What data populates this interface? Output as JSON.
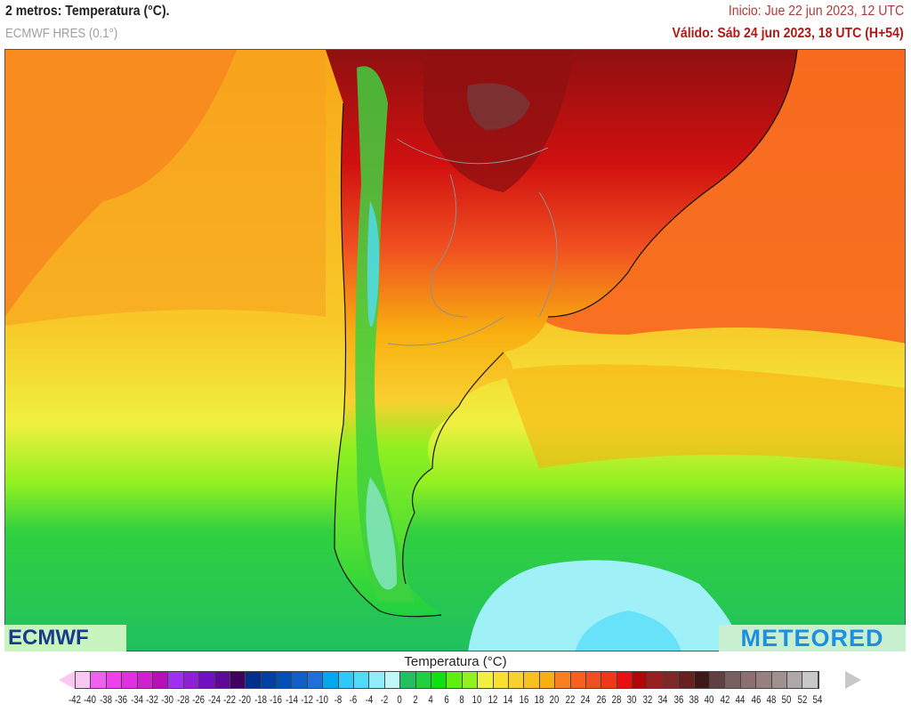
{
  "header": {
    "title": "2 metros: Temperatura (°C).",
    "model": "ECMWF HRES (0.1°)",
    "init": "Inicio: Jue 22 jun 2023, 12 UTC",
    "valid": "Válido: Sáb 24 jun 2023, 18 UTC (H+54)"
  },
  "map": {
    "region": "South America (southern cone)",
    "variable": "2 m temperature"
  },
  "logos": {
    "left": "ECMWF",
    "right": "METEORED"
  },
  "legend": {
    "title": "Temperatura (°C)",
    "ticks": [
      -42,
      -40,
      -38,
      -36,
      -34,
      -32,
      -30,
      -28,
      -26,
      -24,
      -22,
      -20,
      -18,
      -16,
      -14,
      -12,
      -10,
      -8,
      -6,
      -4,
      -2,
      0,
      2,
      4,
      6,
      8,
      10,
      12,
      14,
      16,
      18,
      20,
      22,
      24,
      26,
      28,
      30,
      32,
      34,
      36,
      38,
      40,
      42,
      44,
      46,
      48,
      50,
      52,
      54
    ],
    "colors": [
      "#f9c8f2",
      "#f060f0",
      "#f040e8",
      "#e030e0",
      "#d020d0",
      "#b810b8",
      "#a030f0",
      "#9020d8",
      "#7010c0",
      "#600898",
      "#400060",
      "#00308c",
      "#0040a0",
      "#0050b8",
      "#1060c8",
      "#2070d8",
      "#00a8f0",
      "#30c8f8",
      "#50dcf8",
      "#90ecf8",
      "#c0f8f8",
      "#20c060",
      "#20d040",
      "#10e010",
      "#60f010",
      "#90f020",
      "#f0f040",
      "#f8e030",
      "#f8d030",
      "#f8c020",
      "#f8b010",
      "#f88020",
      "#f86020",
      "#f05020",
      "#f03818",
      "#e81010",
      "#b00808",
      "#982020",
      "#802828",
      "#682020",
      "#401818",
      "#604040",
      "#786060",
      "#8c7070",
      "#988080",
      "#a09090",
      "#b0a8a8",
      "#c8c8c8"
    ]
  }
}
